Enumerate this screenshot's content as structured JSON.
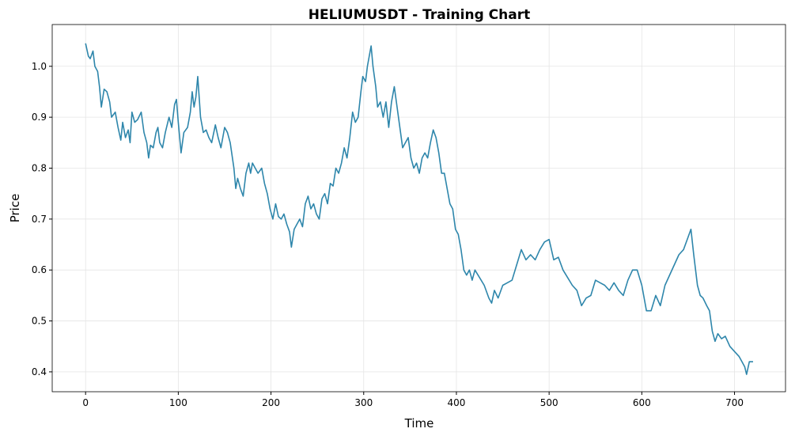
{
  "chart_data": {
    "type": "line",
    "title": "HELIUMUSDT - Training Chart",
    "x_label": "Time",
    "y_label": "Price",
    "series": [
      {
        "name": "Price",
        "color": "#2e86ab",
        "x": [
          0,
          3,
          5,
          8,
          10,
          13,
          15,
          17,
          20,
          23,
          26,
          28,
          32,
          35,
          38,
          40,
          43,
          46,
          48,
          50,
          53,
          56,
          60,
          63,
          66,
          68,
          70,
          73,
          76,
          78,
          80,
          83,
          86,
          90,
          93,
          96,
          98,
          100,
          103,
          106,
          110,
          113,
          115,
          117,
          119,
          121,
          124,
          127,
          130,
          133,
          136,
          140,
          143,
          146,
          150,
          153,
          156,
          160,
          162,
          164,
          167,
          170,
          173,
          176,
          178,
          180,
          183,
          186,
          190,
          193,
          196,
          199,
          202,
          205,
          208,
          211,
          214,
          217,
          220,
          222,
          225,
          228,
          231,
          234,
          237,
          240,
          243,
          246,
          249,
          252,
          255,
          258,
          261,
          264,
          267,
          270,
          273,
          276,
          279,
          282,
          285,
          288,
          291,
          294,
          297,
          299,
          302,
          304,
          306,
          308,
          310,
          313,
          315,
          318,
          321,
          324,
          327,
          330,
          333,
          336,
          339,
          342,
          345,
          348,
          351,
          354,
          357,
          360,
          363,
          366,
          369,
          372,
          375,
          378,
          381,
          384,
          387,
          390,
          393,
          396,
          399,
          402,
          405,
          408,
          411,
          414,
          417,
          420,
          425,
          430,
          435,
          438,
          441,
          445,
          450,
          455,
          460,
          465,
          470,
          475,
          480,
          485,
          490,
          495,
          500,
          505,
          510,
          515,
          520,
          525,
          530,
          535,
          540,
          545,
          550,
          555,
          560,
          565,
          570,
          575,
          580,
          585,
          590,
          595,
          600,
          605,
          610,
          615,
          620,
          625,
          630,
          635,
          640,
          645,
          650,
          653,
          656,
          660,
          663,
          666,
          670,
          673,
          676,
          679,
          682,
          686,
          690,
          695,
          700,
          705,
          708,
          711,
          713,
          716,
          720
        ],
        "values": [
          1.045,
          1.02,
          1.015,
          1.03,
          1.0,
          0.99,
          0.96,
          0.92,
          0.955,
          0.95,
          0.93,
          0.9,
          0.91,
          0.88,
          0.855,
          0.89,
          0.86,
          0.875,
          0.85,
          0.91,
          0.89,
          0.895,
          0.91,
          0.87,
          0.85,
          0.82,
          0.845,
          0.84,
          0.87,
          0.88,
          0.85,
          0.84,
          0.87,
          0.9,
          0.88,
          0.925,
          0.935,
          0.89,
          0.83,
          0.87,
          0.88,
          0.91,
          0.95,
          0.92,
          0.94,
          0.98,
          0.9,
          0.87,
          0.875,
          0.86,
          0.85,
          0.885,
          0.86,
          0.84,
          0.88,
          0.87,
          0.85,
          0.8,
          0.76,
          0.78,
          0.76,
          0.745,
          0.79,
          0.81,
          0.79,
          0.81,
          0.8,
          0.79,
          0.8,
          0.77,
          0.75,
          0.72,
          0.7,
          0.73,
          0.705,
          0.7,
          0.71,
          0.69,
          0.675,
          0.645,
          0.68,
          0.69,
          0.7,
          0.685,
          0.73,
          0.745,
          0.72,
          0.73,
          0.71,
          0.7,
          0.74,
          0.75,
          0.73,
          0.77,
          0.765,
          0.8,
          0.79,
          0.81,
          0.84,
          0.82,
          0.86,
          0.91,
          0.89,
          0.9,
          0.95,
          0.98,
          0.97,
          1.0,
          1.02,
          1.04,
          1.0,
          0.96,
          0.92,
          0.93,
          0.9,
          0.93,
          0.88,
          0.93,
          0.96,
          0.92,
          0.88,
          0.84,
          0.85,
          0.86,
          0.82,
          0.8,
          0.81,
          0.79,
          0.82,
          0.83,
          0.82,
          0.85,
          0.875,
          0.86,
          0.83,
          0.79,
          0.79,
          0.76,
          0.73,
          0.72,
          0.68,
          0.67,
          0.64,
          0.6,
          0.59,
          0.6,
          0.58,
          0.6,
          0.585,
          0.57,
          0.545,
          0.535,
          0.56,
          0.545,
          0.57,
          0.575,
          0.58,
          0.61,
          0.64,
          0.62,
          0.63,
          0.62,
          0.64,
          0.655,
          0.66,
          0.62,
          0.625,
          0.6,
          0.585,
          0.57,
          0.56,
          0.53,
          0.545,
          0.55,
          0.58,
          0.575,
          0.57,
          0.56,
          0.575,
          0.56,
          0.55,
          0.58,
          0.6,
          0.6,
          0.57,
          0.52,
          0.52,
          0.55,
          0.53,
          0.57,
          0.59,
          0.61,
          0.63,
          0.64,
          0.665,
          0.68,
          0.63,
          0.57,
          0.55,
          0.545,
          0.53,
          0.52,
          0.48,
          0.46,
          0.475,
          0.465,
          0.47,
          0.45,
          0.44,
          0.43,
          0.42,
          0.41,
          0.395,
          0.42,
          0.42
        ]
      }
    ],
    "xlim": [
      -36,
      755
    ],
    "xticks": [
      0,
      100,
      200,
      300,
      400,
      500,
      600,
      700
    ],
    "ylim": [
      0.361,
      1.082
    ],
    "yticks": [
      0.4,
      0.5,
      0.6,
      0.7,
      0.8,
      0.9,
      {
        "value": 1.0,
        "label": "1.0"
      }
    ],
    "grid": true
  }
}
